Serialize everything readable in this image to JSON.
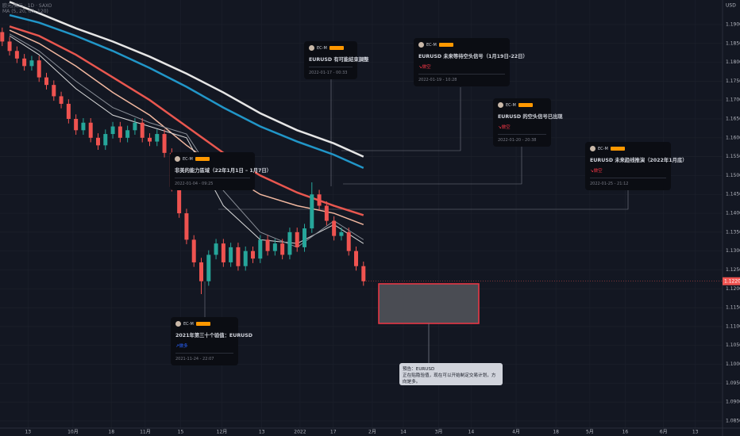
{
  "header": {
    "symbol": "欧元/美元 · 1D · SAXO",
    "indicator": "MA (5, 20, 60, 120)",
    "currency": "USD"
  },
  "chart_data": {
    "type": "candlestick",
    "x": [
      0,
      1,
      2,
      3,
      4,
      5,
      6,
      7,
      8,
      9,
      10,
      11,
      12,
      13,
      14,
      15,
      16,
      17,
      18,
      19,
      20,
      21,
      22,
      23,
      24,
      25,
      26,
      27,
      28,
      29,
      30,
      31,
      32,
      33,
      34,
      35,
      36,
      37,
      38,
      39,
      40,
      41,
      42,
      43,
      44,
      45,
      46,
      47,
      48,
      49
    ],
    "open": [
      1.188,
      1.1855,
      1.183,
      1.181,
      1.179,
      1.1805,
      1.176,
      1.174,
      1.171,
      1.169,
      1.165,
      1.162,
      1.164,
      1.16,
      1.158,
      1.161,
      1.163,
      1.16,
      1.162,
      1.164,
      1.16,
      1.159,
      1.161,
      1.156,
      1.147,
      1.14,
      1.133,
      1.127,
      1.122,
      1.129,
      1.132,
      1.127,
      1.131,
      1.126,
      1.13,
      1.128,
      1.133,
      1.13,
      1.132,
      1.129,
      1.135,
      1.131,
      1.136,
      1.145,
      1.142,
      1.138,
      1.134,
      1.135,
      1.13,
      1.126
    ],
    "high": [
      1.1892,
      1.1867,
      1.1842,
      1.1822,
      1.1817,
      1.1817,
      1.1772,
      1.1752,
      1.1722,
      1.1702,
      1.1662,
      1.1652,
      1.1652,
      1.1612,
      1.1622,
      1.1642,
      1.1642,
      1.1632,
      1.1652,
      1.1652,
      1.1612,
      1.1622,
      1.1622,
      1.1572,
      1.1482,
      1.1412,
      1.1342,
      1.1282,
      1.1302,
      1.1332,
      1.1332,
      1.1322,
      1.1322,
      1.1312,
      1.1312,
      1.1342,
      1.1342,
      1.1332,
      1.1332,
      1.1362,
      1.1362,
      1.1372,
      1.1482,
      1.1462,
      1.1432,
      1.1392,
      1.1362,
      1.1362,
      1.1312,
      1.1272
    ],
    "low": [
      1.1843,
      1.1818,
      1.1798,
      1.1778,
      1.1778,
      1.1748,
      1.1728,
      1.1698,
      1.1678,
      1.1638,
      1.1608,
      1.1608,
      1.1588,
      1.1568,
      1.1568,
      1.1598,
      1.1588,
      1.1588,
      1.1608,
      1.1588,
      1.1578,
      1.1578,
      1.1548,
      1.1458,
      1.1388,
      1.1318,
      1.1258,
      1.1186,
      1.1208,
      1.1278,
      1.1258,
      1.1258,
      1.1248,
      1.1248,
      1.1268,
      1.1268,
      1.1288,
      1.1288,
      1.1278,
      1.1278,
      1.1298,
      1.1298,
      1.1348,
      1.1408,
      1.1368,
      1.1328,
      1.1328,
      1.1288,
      1.1248,
      1.1208
    ],
    "close": [
      1.1855,
      1.183,
      1.181,
      1.179,
      1.1805,
      1.176,
      1.174,
      1.171,
      1.169,
      1.165,
      1.162,
      1.164,
      1.16,
      1.158,
      1.161,
      1.163,
      1.16,
      1.162,
      1.164,
      1.16,
      1.159,
      1.161,
      1.156,
      1.147,
      1.14,
      1.133,
      1.127,
      1.122,
      1.129,
      1.132,
      1.127,
      1.131,
      1.126,
      1.13,
      1.128,
      1.133,
      1.13,
      1.132,
      1.129,
      1.135,
      1.131,
      1.136,
      1.145,
      1.142,
      1.138,
      1.134,
      1.135,
      1.13,
      1.126,
      1.122
    ],
    "up_color": "#26a69a",
    "down_color": "#ef5350",
    "series": [
      {
        "color": "#e6e6e6",
        "width": 2.5,
        "x": [
          1,
          5,
          10,
          15,
          20,
          25,
          30,
          35,
          40,
          45,
          49
        ],
        "values": [
          1.196,
          1.193,
          1.189,
          1.1855,
          1.1815,
          1.177,
          1.172,
          1.1665,
          1.162,
          1.1585,
          1.155
        ]
      },
      {
        "color": "#2196c8",
        "width": 2.5,
        "x": [
          1,
          5,
          10,
          15,
          20,
          25,
          30,
          35,
          40,
          45,
          49
        ],
        "values": [
          1.1925,
          1.1905,
          1.187,
          1.183,
          1.1785,
          1.1735,
          1.168,
          1.163,
          1.159,
          1.1555,
          1.152
        ]
      },
      {
        "color": "#e9574f",
        "width": 2.5,
        "x": [
          1,
          5,
          10,
          15,
          20,
          25,
          30,
          35,
          40,
          45,
          49
        ],
        "values": [
          1.1895,
          1.187,
          1.182,
          1.176,
          1.17,
          1.163,
          1.156,
          1.15,
          1.1455,
          1.142,
          1.1395
        ]
      },
      {
        "color": "#f2b8a0",
        "width": 1.5,
        "x": [
          1,
          5,
          10,
          15,
          20,
          25,
          30,
          35,
          40,
          45,
          49
        ],
        "values": [
          1.1885,
          1.185,
          1.179,
          1.172,
          1.166,
          1.158,
          1.151,
          1.145,
          1.142,
          1.14,
          1.137
        ]
      },
      {
        "color": "#d8d8d8",
        "width": 1,
        "x": [
          1,
          5,
          10,
          15,
          20,
          25,
          30,
          35,
          40,
          45,
          49
        ],
        "values": [
          1.187,
          1.182,
          1.173,
          1.166,
          1.163,
          1.16,
          1.142,
          1.133,
          1.132,
          1.137,
          1.132
        ]
      },
      {
        "color": "#8a8f98",
        "width": 1,
        "x": [
          1,
          5,
          10,
          15,
          20,
          25,
          30,
          35,
          40,
          45,
          49
        ],
        "values": [
          1.1875,
          1.183,
          1.175,
          1.168,
          1.164,
          1.161,
          1.146,
          1.135,
          1.131,
          1.138,
          1.133
        ]
      }
    ],
    "xlim": [
      -0.3,
      97.7
    ],
    "xticks": [
      {
        "value": 3.5,
        "label": "13"
      },
      {
        "value": 9.6,
        "label": "10月"
      },
      {
        "value": 14.8,
        "label": "18"
      },
      {
        "value": 19.4,
        "label": "11月"
      },
      {
        "value": 24.2,
        "label": "15"
      },
      {
        "value": 29.8,
        "label": "12月"
      },
      {
        "value": 35.2,
        "label": "13"
      },
      {
        "value": 40.4,
        "label": "2022"
      },
      {
        "value": 44.9,
        "label": "17"
      },
      {
        "value": 50.2,
        "label": "2月"
      },
      {
        "value": 54.4,
        "label": "14"
      },
      {
        "value": 59.2,
        "label": "3月"
      },
      {
        "value": 63.6,
        "label": "14"
      },
      {
        "value": 69.7,
        "label": "4月"
      },
      {
        "value": 75.1,
        "label": "18"
      },
      {
        "value": 79.7,
        "label": "5月"
      },
      {
        "value": 84.5,
        "label": "16"
      },
      {
        "value": 89.7,
        "label": "6月"
      },
      {
        "value": 94.0,
        "label": "13"
      }
    ],
    "ylim": [
      1.0831,
      1.1965
    ],
    "yticks": [
      {
        "value": 1.085,
        "label": "1.08500"
      },
      {
        "value": 1.09,
        "label": "1.09000"
      },
      {
        "value": 1.095,
        "label": "1.09500"
      },
      {
        "value": 1.1,
        "label": "1.10000"
      },
      {
        "value": 1.105,
        "label": "1.10500"
      },
      {
        "value": 1.11,
        "label": "1.11000"
      },
      {
        "value": 1.115,
        "label": "1.11500"
      },
      {
        "value": 1.12,
        "label": "1.12000"
      },
      {
        "value": 1.125,
        "label": "1.12500"
      },
      {
        "value": 1.13,
        "label": "1.13000"
      },
      {
        "value": 1.135,
        "label": "1.13500"
      },
      {
        "value": 1.14,
        "label": "1.14000"
      },
      {
        "value": 1.145,
        "label": "1.14500"
      },
      {
        "value": 1.15,
        "label": "1.15000"
      },
      {
        "value": 1.155,
        "label": "1.15500"
      },
      {
        "value": 1.16,
        "label": "1.16000"
      },
      {
        "value": 1.165,
        "label": "1.16500"
      },
      {
        "value": 1.17,
        "label": "1.17000"
      },
      {
        "value": 1.175,
        "label": "1.17500"
      },
      {
        "value": 1.18,
        "label": "1.18000"
      },
      {
        "value": 1.185,
        "label": "1.18500"
      },
      {
        "value": 1.19,
        "label": "1.19000"
      }
    ],
    "last_price": {
      "value": 1.122,
      "label": "1.12200"
    },
    "grid": true
  },
  "ideas": [
    {
      "author": "EC-M",
      "title": "EURUSD 有可能結束調整",
      "date": "2022-01-17 - 00:33"
    },
    {
      "author": "EC-M",
      "title": "EURUSD 未来等待空头信号（1月19日-22日）",
      "signal": "↘做空",
      "date": "2022-01-19 - 10:28"
    },
    {
      "author": "EC-M",
      "title": "EURUSD 的空头信号已出现",
      "signal": "↘做空",
      "date": "2022-01-20 - 20:38"
    },
    {
      "author": "EC-M",
      "title": "EURUSD 未来趋线推演（2022年1月底）",
      "signal": "↘做空",
      "date": "2022-01-25 - 21:12"
    },
    {
      "author": "EC-M",
      "title": "非美的能力區域（22年1月1日 – 1月7日）",
      "date": "2022-01-04 - 09:25"
    },
    {
      "author": "EC-M",
      "title": "2021年第三十个验值：EURUSD",
      "signal": "↗做多",
      "date": "2021-11-24 - 22:07"
    }
  ],
  "forecast": {
    "title": "預告：EURUSD",
    "text": "正在贴隐验值，现在可以开始制定交易计划，方向是多。"
  }
}
